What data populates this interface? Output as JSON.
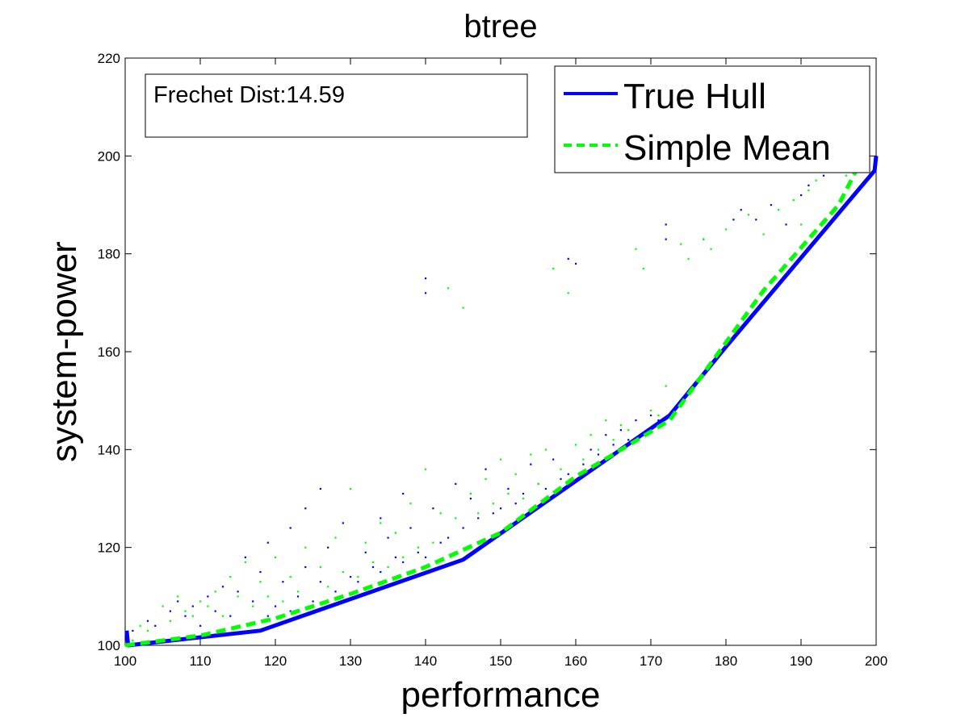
{
  "chart_data": {
    "type": "line",
    "title": "btree",
    "xlabel": "performance",
    "ylabel": "system-power",
    "xlim": [
      100,
      200
    ],
    "ylim": [
      100,
      220
    ],
    "xticks": [
      "100",
      "110",
      "120",
      "130",
      "140",
      "150",
      "160",
      "170",
      "180",
      "190",
      "200"
    ],
    "yticks": [
      "100",
      "120",
      "140",
      "160",
      "180",
      "200",
      "220"
    ],
    "grid": false,
    "legend_position": "top-right",
    "annotation": "Frechet Dist:14.59",
    "series": [
      {
        "name": "True Hull",
        "style": "solid",
        "color": "#0000ff",
        "x": [
          100.2,
          100.4,
          118,
          145,
          172.5,
          180,
          199.8,
          200
        ],
        "y": [
          103,
          100,
          103,
          117.5,
          147,
          161,
          197,
          200
        ]
      },
      {
        "name": "Simple Mean",
        "style": "dashed",
        "color": "#00ff00",
        "x": [
          100,
          110,
          120,
          130,
          140,
          150,
          160,
          165,
          172.5,
          185,
          195,
          198
        ],
        "y": [
          100,
          102,
          105.5,
          110.5,
          116,
          123,
          134.5,
          139,
          146,
          172.5,
          190,
          199
        ]
      }
    ],
    "scatter": [
      {
        "color": "#0000ff",
        "points": [
          [
            101,
            103
          ],
          [
            103,
            105
          ],
          [
            104,
            104
          ],
          [
            106,
            107
          ],
          [
            107,
            109
          ],
          [
            108,
            106
          ],
          [
            109,
            108
          ],
          [
            110,
            104
          ],
          [
            111,
            110
          ],
          [
            112,
            107
          ],
          [
            113,
            112
          ],
          [
            114,
            106
          ],
          [
            115,
            111
          ],
          [
            116,
            118
          ],
          [
            117,
            109
          ],
          [
            118,
            115
          ],
          [
            119,
            106
          ],
          [
            119,
            121
          ],
          [
            120,
            108
          ],
          [
            121,
            113
          ],
          [
            122,
            107
          ],
          [
            122,
            124
          ],
          [
            123,
            110
          ],
          [
            124,
            116
          ],
          [
            124,
            128
          ],
          [
            125,
            109
          ],
          [
            126,
            132
          ],
          [
            126,
            113
          ],
          [
            127,
            120
          ],
          [
            128,
            111
          ],
          [
            129,
            125
          ],
          [
            130,
            114
          ],
          [
            131,
            113
          ],
          [
            132,
            119
          ],
          [
            133,
            116
          ],
          [
            134,
            115
          ],
          [
            134,
            126
          ],
          [
            135,
            122
          ],
          [
            136,
            118
          ],
          [
            137,
            117
          ],
          [
            137,
            131
          ],
          [
            138,
            124
          ],
          [
            139,
            119
          ],
          [
            140,
            175
          ],
          [
            140,
            172
          ],
          [
            140,
            118
          ],
          [
            141,
            128
          ],
          [
            142,
            121
          ],
          [
            143,
            122
          ],
          [
            144,
            133
          ],
          [
            145,
            124
          ],
          [
            146,
            130
          ],
          [
            147,
            126
          ],
          [
            148,
            136
          ],
          [
            149,
            127
          ],
          [
            150,
            128
          ],
          [
            151,
            132
          ],
          [
            152,
            129
          ],
          [
            153,
            131
          ],
          [
            154,
            137
          ],
          [
            155,
            133
          ],
          [
            156,
            132
          ],
          [
            157,
            138
          ],
          [
            158,
            134
          ],
          [
            159,
            179
          ],
          [
            159,
            135
          ],
          [
            160,
            178
          ],
          [
            161,
            137
          ],
          [
            162,
            140
          ],
          [
            163,
            139
          ],
          [
            164,
            143
          ],
          [
            165,
            141
          ],
          [
            166,
            144
          ],
          [
            167,
            142
          ],
          [
            168,
            146
          ],
          [
            169,
            143
          ],
          [
            170,
            147
          ],
          [
            171,
            146
          ],
          [
            172,
            186
          ],
          [
            172,
            183
          ],
          [
            173,
            148
          ],
          [
            175,
            152
          ],
          [
            177,
            183
          ],
          [
            179,
            159
          ],
          [
            181,
            187
          ],
          [
            182,
            189
          ],
          [
            184,
            187
          ],
          [
            186,
            190
          ],
          [
            188,
            186
          ],
          [
            190,
            192
          ],
          [
            191,
            194
          ],
          [
            193,
            196
          ],
          [
            195,
            197
          ],
          [
            197,
            198
          ],
          [
            198,
            199
          ]
        ]
      },
      {
        "color": "#00ff00",
        "points": [
          [
            101,
            101
          ],
          [
            102,
            104
          ],
          [
            103,
            103
          ],
          [
            105,
            108
          ],
          [
            106,
            105
          ],
          [
            107,
            110
          ],
          [
            108,
            107
          ],
          [
            109,
            106
          ],
          [
            110,
            109
          ],
          [
            111,
            108
          ],
          [
            112,
            111
          ],
          [
            113,
            106
          ],
          [
            114,
            114
          ],
          [
            115,
            110
          ],
          [
            116,
            117
          ],
          [
            117,
            108
          ],
          [
            118,
            113
          ],
          [
            119,
            110
          ],
          [
            120,
            118
          ],
          [
            121,
            109
          ],
          [
            122,
            114
          ],
          [
            123,
            111
          ],
          [
            124,
            120
          ],
          [
            125,
            108
          ],
          [
            126,
            116
          ],
          [
            127,
            112
          ],
          [
            128,
            122
          ],
          [
            129,
            115
          ],
          [
            130,
            132
          ],
          [
            131,
            114
          ],
          [
            132,
            121
          ],
          [
            133,
            117
          ],
          [
            134,
            125
          ],
          [
            135,
            116
          ],
          [
            136,
            123
          ],
          [
            137,
            118
          ],
          [
            138,
            129
          ],
          [
            139,
            120
          ],
          [
            140,
            136
          ],
          [
            141,
            121
          ],
          [
            142,
            127
          ],
          [
            143,
            173
          ],
          [
            144,
            126
          ],
          [
            145,
            169
          ],
          [
            146,
            131
          ],
          [
            147,
            127
          ],
          [
            148,
            134
          ],
          [
            149,
            129
          ],
          [
            150,
            138
          ],
          [
            151,
            131
          ],
          [
            152,
            135
          ],
          [
            153,
            130
          ],
          [
            154,
            139
          ],
          [
            155,
            133
          ],
          [
            156,
            140
          ],
          [
            157,
            177
          ],
          [
            158,
            136
          ],
          [
            159,
            172
          ],
          [
            160,
            141
          ],
          [
            161,
            138
          ],
          [
            162,
            143
          ],
          [
            163,
            140
          ],
          [
            164,
            146
          ],
          [
            165,
            142
          ],
          [
            166,
            145
          ],
          [
            167,
            144
          ],
          [
            168,
            181
          ],
          [
            169,
            177
          ],
          [
            170,
            148
          ],
          [
            171,
            147
          ],
          [
            172,
            153
          ],
          [
            174,
            182
          ],
          [
            175,
            179
          ],
          [
            177,
            183
          ],
          [
            178,
            181
          ],
          [
            180,
            185
          ],
          [
            183,
            188
          ],
          [
            185,
            184
          ],
          [
            187,
            189
          ],
          [
            189,
            191
          ],
          [
            190,
            186
          ],
          [
            191,
            193
          ],
          [
            192,
            195
          ],
          [
            194,
            197
          ],
          [
            196,
            196
          ],
          [
            198,
            198
          ]
        ]
      }
    ]
  }
}
